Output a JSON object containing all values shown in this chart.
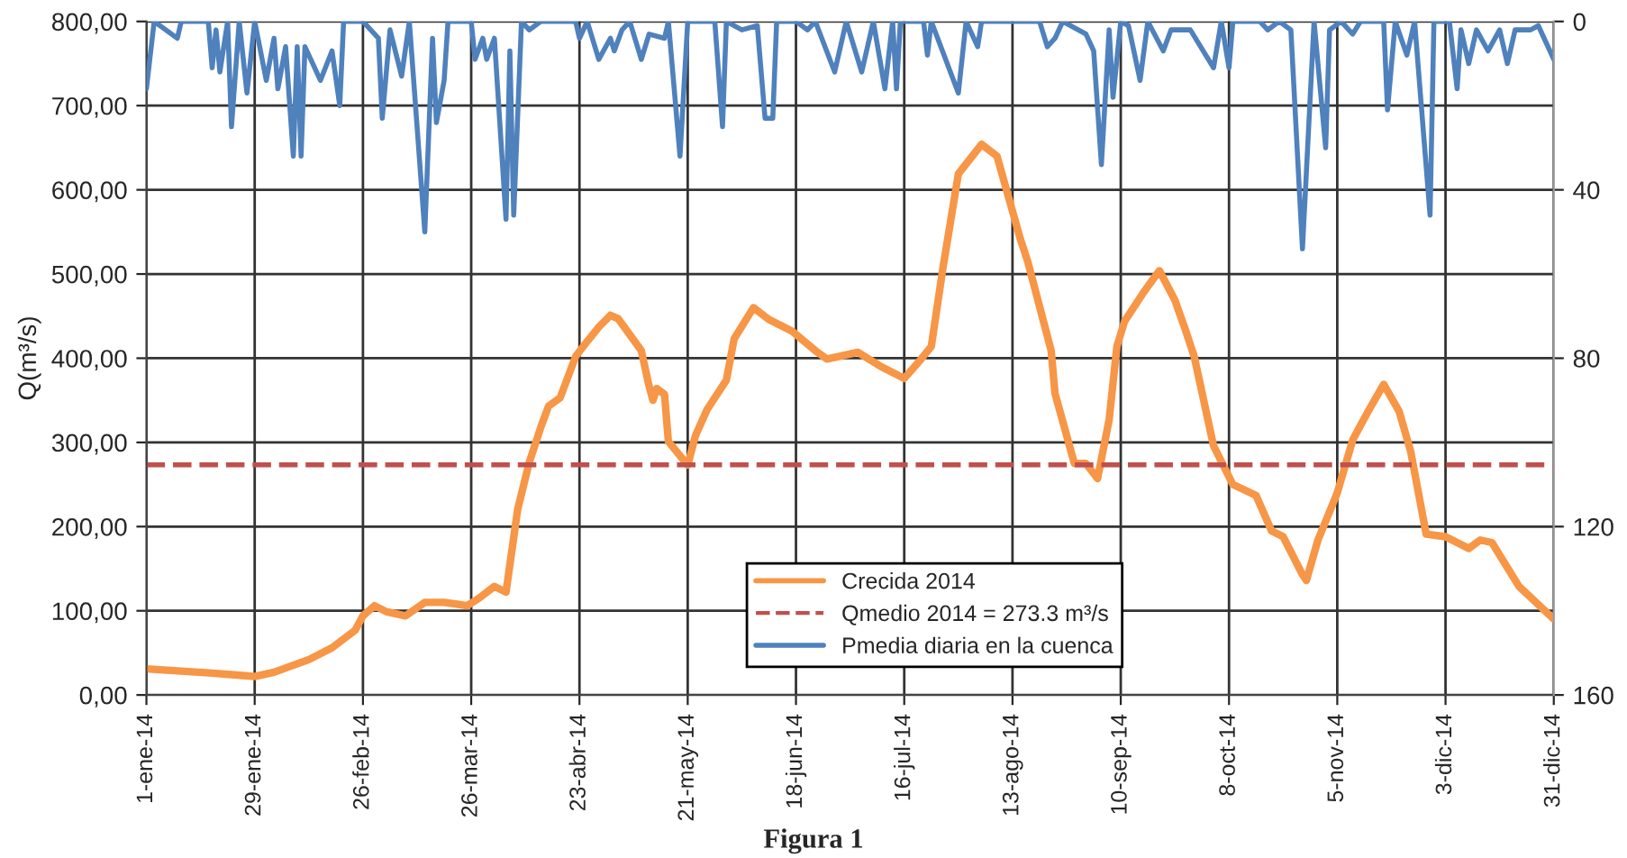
{
  "chart_data": {
    "type": "line",
    "ylabel": "Q(m³/s)",
    "xlim": [
      "2014-01-01",
      "2014-12-31"
    ],
    "xticks": [
      {
        "value": "2014-01-01",
        "label": "1-ene-14"
      },
      {
        "value": "2014-01-29",
        "label": "29-ene-14"
      },
      {
        "value": "2014-02-26",
        "label": "26-feb-14"
      },
      {
        "value": "2014-03-26",
        "label": "26-mar-14"
      },
      {
        "value": "2014-04-23",
        "label": "23-abr-14"
      },
      {
        "value": "2014-05-21",
        "label": "21-may-14"
      },
      {
        "value": "2014-06-18",
        "label": "18-jun-14"
      },
      {
        "value": "2014-07-16",
        "label": "16-jul-14"
      },
      {
        "value": "2014-08-13",
        "label": "13-ago-14"
      },
      {
        "value": "2014-09-10",
        "label": "10-sep-14"
      },
      {
        "value": "2014-10-08",
        "label": "8-oct-14"
      },
      {
        "value": "2014-11-05",
        "label": "5-nov-14"
      },
      {
        "value": "2014-12-03",
        "label": "3-dic-14"
      },
      {
        "value": "2014-12-31",
        "label": "31-dic-14"
      }
    ],
    "ylim": [
      0,
      800
    ],
    "yticks": [
      {
        "value": 0,
        "label": "0,00"
      },
      {
        "value": 100,
        "label": "100,00"
      },
      {
        "value": 200,
        "label": "200,00"
      },
      {
        "value": 300,
        "label": "300,00"
      },
      {
        "value": 400,
        "label": "400,00"
      },
      {
        "value": 500,
        "label": "500,00"
      },
      {
        "value": 600,
        "label": "600,00"
      },
      {
        "value": 700,
        "label": "700,00"
      },
      {
        "value": 800,
        "label": "800,00"
      }
    ],
    "y2lim": [
      160,
      0
    ],
    "y2ticks": [
      0,
      40,
      80,
      120,
      160
    ],
    "grid": true,
    "legend": "bottom",
    "annotations": [
      "Figura 1"
    ],
    "ref_lines": [
      {
        "axis": "y",
        "value": 273.3,
        "label": "Qmedio 2014 = 273.3 m³/s",
        "color": "#c0504d",
        "line_style": "dashed"
      }
    ],
    "series": [
      {
        "name": "Crecida 2014",
        "color": "#f79646",
        "x": [
          "2014-01-01",
          "2014-01-18",
          "2014-01-29",
          "2014-02-03",
          "2014-02-12",
          "2014-02-18",
          "2014-02-24",
          "2014-02-26",
          "2014-03-01",
          "2014-03-04",
          "2014-03-09",
          "2014-03-14",
          "2014-03-19",
          "2014-03-25",
          "2014-03-28",
          "2014-04-01",
          "2014-04-04",
          "2014-04-07",
          "2014-04-10",
          "2014-04-13",
          "2014-04-15",
          "2014-04-18",
          "2014-04-22",
          "2014-04-25",
          "2014-04-28",
          "2014-05-01",
          "2014-05-03",
          "2014-05-09",
          "2014-05-11",
          "2014-05-12",
          "2014-05-13",
          "2014-05-15",
          "2014-05-16",
          "2014-05-21",
          "2014-05-23",
          "2014-05-26",
          "2014-05-31",
          "2014-06-02",
          "2014-06-07",
          "2014-06-11",
          "2014-06-17",
          "2014-06-23",
          "2014-06-26",
          "2014-06-29",
          "2014-07-04",
          "2014-07-10",
          "2014-07-16",
          "2014-07-20",
          "2014-07-23",
          "2014-07-26",
          "2014-07-30",
          "2014-08-05",
          "2014-08-09",
          "2014-08-12",
          "2014-08-15",
          "2014-08-17",
          "2014-08-21",
          "2014-08-23",
          "2014-08-24",
          "2014-08-29",
          "2014-09-01",
          "2014-09-04",
          "2014-09-07",
          "2014-09-09",
          "2014-09-11",
          "2014-09-16",
          "2014-09-20",
          "2014-09-24",
          "2014-09-27",
          "2014-09-29",
          "2014-10-04",
          "2014-10-09",
          "2014-10-15",
          "2014-10-19",
          "2014-10-22",
          "2014-10-27",
          "2014-10-28",
          "2014-10-31",
          "2014-11-05",
          "2014-11-09",
          "2014-11-13",
          "2014-11-17",
          "2014-11-21",
          "2014-11-24",
          "2014-11-28",
          "2014-12-03",
          "2014-12-09",
          "2014-12-12",
          "2014-12-15",
          "2014-12-22",
          "2014-12-31"
        ],
        "values": [
          31,
          26,
          22,
          27,
          42,
          56,
          77,
          94,
          106,
          99,
          94,
          110,
          110,
          106,
          115,
          129,
          122,
          220,
          276,
          318,
          343,
          353,
          402,
          420,
          437,
          451,
          447,
          409,
          367,
          350,
          364,
          357,
          301,
          273,
          308,
          339,
          374,
          423,
          460,
          446,
          432,
          409,
          399,
          402,
          407,
          390,
          376,
          397,
          414,
          507,
          619,
          654,
          640,
          591,
          542,
          514,
          444,
          409,
          358,
          275,
          275,
          257,
          327,
          414,
          444,
          479,
          504,
          469,
          430,
          402,
          296,
          250,
          237,
          195,
          188,
          143,
          136,
          184,
          240,
          303,
          337,
          369,
          337,
          289,
          191,
          188,
          174,
          184,
          181,
          129,
          90
        ]
      },
      {
        "name": "Pmedia diaria en la cuenca",
        "color": "#4f81bd",
        "axis": "y2",
        "x": [
          "2014-01-01",
          "2014-01-03",
          "2014-01-09",
          "2014-01-10",
          "2014-01-17",
          "2014-01-18",
          "2014-01-19",
          "2014-01-20",
          "2014-01-22",
          "2014-01-23",
          "2014-01-25",
          "2014-01-27",
          "2014-01-29",
          "2014-02-01",
          "2014-02-03",
          "2014-02-04",
          "2014-02-06",
          "2014-02-08",
          "2014-02-09",
          "2014-02-10",
          "2014-02-11",
          "2014-02-15",
          "2014-02-18",
          "2014-02-20",
          "2014-02-21",
          "2014-02-26",
          "2014-03-02",
          "2014-03-03",
          "2014-03-05",
          "2014-03-08",
          "2014-03-10",
          "2014-03-14",
          "2014-03-16",
          "2014-03-17",
          "2014-03-19",
          "2014-03-20",
          "2014-03-26",
          "2014-03-27",
          "2014-03-29",
          "2014-03-30",
          "2014-04-01",
          "2014-04-04",
          "2014-04-05",
          "2014-04-06",
          "2014-04-08",
          "2014-04-10",
          "2014-04-13",
          "2014-04-22",
          "2014-04-23",
          "2014-04-25",
          "2014-04-28",
          "2014-05-01",
          "2014-05-02",
          "2014-05-04",
          "2014-05-06",
          "2014-05-09",
          "2014-05-11",
          "2014-05-15",
          "2014-05-16",
          "2014-05-19",
          "2014-05-21",
          "2014-05-28",
          "2014-05-30",
          "2014-05-31",
          "2014-06-04",
          "2014-06-08",
          "2014-06-10",
          "2014-06-12",
          "2014-06-13",
          "2014-06-18",
          "2014-06-21",
          "2014-06-23",
          "2014-06-28",
          "2014-07-01",
          "2014-07-05",
          "2014-07-08",
          "2014-07-11",
          "2014-07-13",
          "2014-07-14",
          "2014-07-15",
          "2014-07-21",
          "2014-07-22",
          "2014-07-23",
          "2014-07-30",
          "2014-08-01",
          "2014-08-04",
          "2014-08-05",
          "2014-08-20",
          "2014-08-22",
          "2014-08-24",
          "2014-08-26",
          "2014-09-01",
          "2014-09-03",
          "2014-09-05",
          "2014-09-07",
          "2014-09-08",
          "2014-09-10",
          "2014-09-12",
          "2014-09-15",
          "2014-09-17",
          "2014-09-21",
          "2014-09-23",
          "2014-09-28",
          "2014-10-04",
          "2014-10-06",
          "2014-10-08",
          "2014-10-09",
          "2014-10-16",
          "2014-10-18",
          "2014-10-21",
          "2014-10-24",
          "2014-10-27",
          "2014-10-30",
          "2014-11-02",
          "2014-11-03",
          "2014-11-06",
          "2014-11-09",
          "2014-11-11",
          "2014-11-17",
          "2014-11-18",
          "2014-11-20",
          "2014-11-23",
          "2014-11-25",
          "2014-11-29",
          "2014-11-30",
          "2014-12-04",
          "2014-12-06",
          "2014-12-07",
          "2014-12-09",
          "2014-12-11",
          "2014-12-14",
          "2014-12-17",
          "2014-12-19",
          "2014-12-21",
          "2014-12-25",
          "2014-12-27",
          "2014-12-31"
        ],
        "values": [
          16,
          0,
          4,
          0,
          0,
          11,
          2,
          12,
          0,
          25,
          0,
          17,
          0,
          14,
          4,
          16,
          6,
          32,
          6,
          32,
          6,
          14,
          7,
          20,
          0,
          0,
          4,
          23,
          2,
          13,
          0,
          50,
          4,
          24,
          14,
          0,
          0,
          9,
          4,
          9,
          4,
          47,
          7,
          46,
          0,
          2,
          0,
          0,
          4,
          0,
          9,
          4,
          7,
          2,
          0,
          9,
          3,
          4,
          0,
          32,
          0,
          0,
          25,
          0,
          2,
          1,
          23,
          23,
          0,
          0,
          2,
          0,
          12,
          0,
          12,
          0,
          16,
          0,
          16,
          0,
          0,
          8,
          0,
          17,
          0,
          6,
          0,
          0,
          6,
          4,
          0,
          3,
          7,
          34,
          2,
          18,
          0,
          1,
          14,
          0,
          7,
          2,
          2,
          11,
          0,
          11,
          0,
          0,
          2,
          0,
          2,
          54,
          0,
          30,
          2,
          0,
          3,
          0,
          0,
          21,
          0,
          8,
          0,
          46,
          0,
          0,
          16,
          2,
          10,
          2,
          7,
          2,
          10,
          2,
          2,
          1,
          9
        ]
      }
    ]
  }
}
